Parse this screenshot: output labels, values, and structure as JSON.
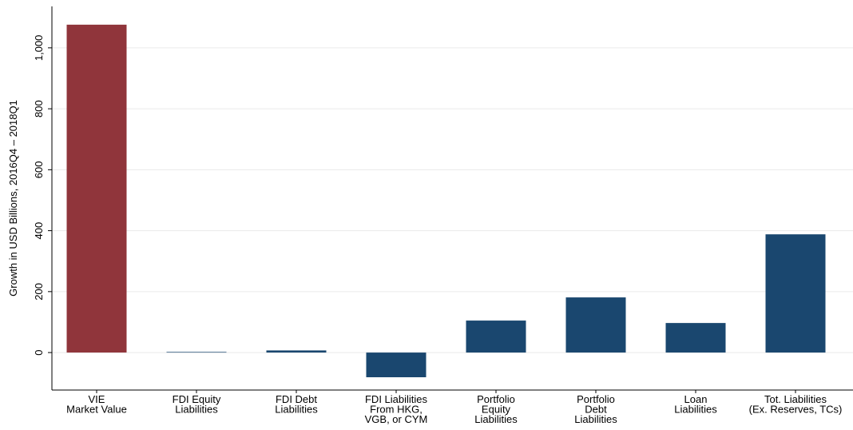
{
  "chart_data": {
    "type": "bar",
    "y_label": "Growth in USD Billions, 2016Q4 – 2018Q1",
    "categories": [
      [
        "VIE",
        "Market Value"
      ],
      [
        "FDI Equity",
        "Liabilities"
      ],
      [
        "FDI Debt",
        "Liabilities"
      ],
      [
        "FDI Liabilities",
        "From HKG,",
        "VGB, or CYM"
      ],
      [
        "Portfolio",
        "Equity",
        "Liabilities"
      ],
      [
        "Portfolio",
        "Debt",
        "Liabilities"
      ],
      [
        "Loan",
        "Liabilities"
      ],
      [
        "Tot. Liabilities",
        "(Ex. Reserves, TCs)"
      ]
    ],
    "values": [
      1076,
      2,
      7,
      -81,
      105,
      181,
      97,
      388
    ],
    "colors": [
      "#90353b",
      "#1a476f",
      "#1a476f",
      "#1a476f",
      "#1a476f",
      "#1a476f",
      "#1a476f",
      "#1a476f"
    ],
    "ylim": [
      -123,
      1136
    ],
    "yticks": [
      0,
      200,
      400,
      600,
      800,
      {
        "value": 1000,
        "label": "1,000"
      }
    ],
    "grid": true
  }
}
